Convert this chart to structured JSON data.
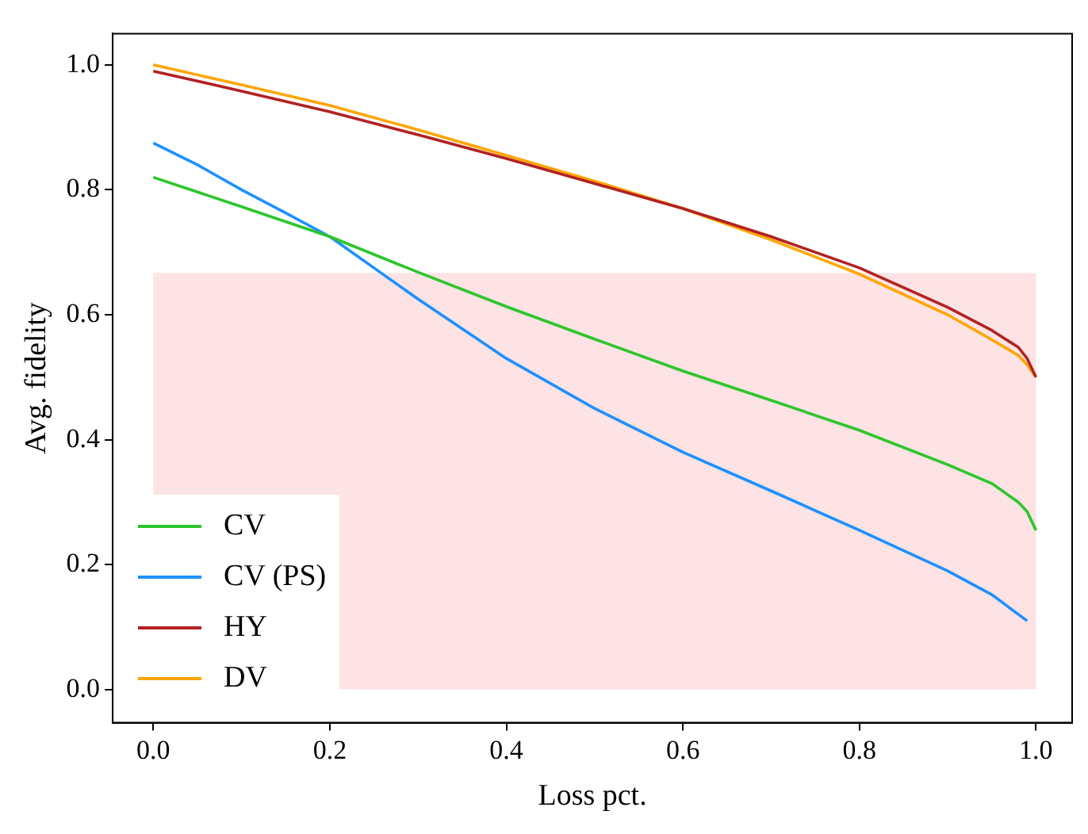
{
  "chart_data": {
    "type": "line",
    "xlabel": "Loss pct.",
    "ylabel": "Avg. fidelity",
    "xlim": [
      -0.046,
      1.041
    ],
    "ylim": [
      -0.053,
      1.05
    ],
    "xticks": [
      {
        "value": 0,
        "label": "0.0"
      },
      0.2,
      0.4,
      0.6,
      0.8,
      {
        "value": 1,
        "label": "1.0"
      }
    ],
    "yticks": [
      {
        "value": 0,
        "label": "0.0"
      },
      0.2,
      0.4,
      0.6,
      0.8,
      {
        "value": 1,
        "label": "1.0"
      }
    ],
    "grid": false,
    "legend": "bottom left",
    "marker": "none",
    "line_style": "solid",
    "bands": [
      {
        "axis": "y",
        "from": 0,
        "to": 0.667,
        "color": "#fde3e3"
      }
    ],
    "series": [
      {
        "name": "CV",
        "color": "#2ec52e",
        "x": [
          0,
          0.1,
          0.2,
          0.3,
          0.4,
          0.5,
          0.6,
          0.7,
          0.8,
          0.9,
          0.95,
          0.98,
          0.99,
          1.0
        ],
        "values": [
          0.82,
          0.773,
          0.725,
          0.668,
          0.613,
          0.561,
          0.51,
          0.463,
          0.415,
          0.36,
          0.33,
          0.3,
          0.285,
          0.255
        ]
      },
      {
        "name": "CV (PS)",
        "color": "#1e90ff",
        "x": [
          0,
          0.05,
          0.1,
          0.15,
          0.2,
          0.3,
          0.4,
          0.5,
          0.6,
          0.7,
          0.8,
          0.9,
          0.95,
          0.99
        ],
        "values": [
          0.875,
          0.84,
          0.8,
          0.763,
          0.725,
          0.625,
          0.53,
          0.45,
          0.38,
          0.318,
          0.255,
          0.19,
          0.152,
          0.11
        ]
      },
      {
        "name": "HY",
        "color": "#b22222",
        "x": [
          0,
          0.1,
          0.2,
          0.3,
          0.4,
          0.5,
          0.6,
          0.7,
          0.8,
          0.9,
          0.95,
          0.98,
          0.99,
          1.0
        ],
        "values": [
          0.99,
          0.958,
          0.925,
          0.888,
          0.85,
          0.81,
          0.77,
          0.725,
          0.675,
          0.612,
          0.575,
          0.548,
          0.53,
          0.5
        ]
      },
      {
        "name": "DV",
        "color": "#ffa500",
        "x": [
          0,
          0.1,
          0.2,
          0.3,
          0.4,
          0.5,
          0.6,
          0.7,
          0.8,
          0.9,
          0.95,
          0.98,
          0.99,
          1.0
        ],
        "values": [
          1.0,
          0.968,
          0.935,
          0.896,
          0.855,
          0.814,
          0.77,
          0.72,
          0.665,
          0.6,
          0.56,
          0.535,
          0.52,
          0.5
        ]
      }
    ]
  }
}
